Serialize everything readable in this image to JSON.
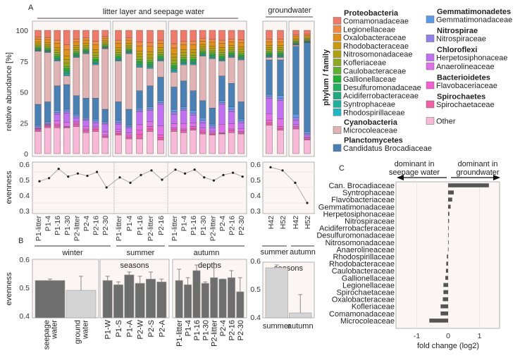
{
  "panel_labels": {
    "a": "A",
    "b": "B",
    "c": "C"
  },
  "legend": {
    "axis_label": "phylum / family",
    "phyla": [
      {
        "phylum": "Proteobacteria",
        "families": [
          {
            "name": "Comamonadaceae",
            "color": "#f07a6a"
          },
          {
            "name": "Legionellaceae",
            "color": "#f08a40"
          },
          {
            "name": "Oxalobacteraceae",
            "color": "#e0901a"
          },
          {
            "name": "Rhodobacteraceae",
            "color": "#c89a10"
          },
          {
            "name": "Nitrosomonadaceae",
            "color": "#b0a010"
          },
          {
            "name": "Kofleriaceae",
            "color": "#90a820"
          },
          {
            "name": "Caulobacteraceae",
            "color": "#60b030"
          },
          {
            "name": "Gallionellaceae",
            "color": "#20b030"
          },
          {
            "name": "Desulfuromonadaceae",
            "color": "#20b060"
          },
          {
            "name": "Acidiferrobacteraceae",
            "color": "#20a880"
          },
          {
            "name": "Syntrophaceae",
            "color": "#20b0a0"
          },
          {
            "name": "Rhodospirillaceae",
            "color": "#20b8c8"
          }
        ]
      },
      {
        "phylum": "Cyanobacteria",
        "families": [
          {
            "name": "Microcoleaceae",
            "color": "#e0b4b4"
          }
        ]
      },
      {
        "phylum": "Planctomycetes",
        "families": [
          {
            "name": "Candidatus Brocadiaceae",
            "color": "#4a80b4"
          }
        ]
      },
      {
        "phylum": "Gemmatimonadetes",
        "families": [
          {
            "name": "Gemmatimonadaceae",
            "color": "#5a9ae8"
          }
        ]
      },
      {
        "phylum": "Nitrospirae",
        "families": [
          {
            "name": "Nitrospiraceae",
            "color": "#9080e8"
          }
        ]
      },
      {
        "phylum": "Chloroflexi",
        "families": [
          {
            "name": "Herpetosiphonaceae",
            "color": "#c070f0"
          },
          {
            "name": "Anaerolineaceae",
            "color": "#e070e8"
          }
        ]
      },
      {
        "phylum": "Bacterioidetes",
        "families": [
          {
            "name": "Flavobaceriaceae",
            "color": "#f060d0"
          }
        ]
      },
      {
        "phylum": "Spirochaetes",
        "families": [
          {
            "name": "Spirochaetaceae",
            "color": "#f060a8"
          }
        ]
      }
    ],
    "other": {
      "name": "Other",
      "color": "#f8b8d8"
    }
  },
  "chart_data": [
    {
      "id": "A-abundance",
      "type": "bar",
      "stacked": true,
      "ylabel": "relative abundance [%]",
      "ylim": [
        0,
        100
      ],
      "yticks": [
        0,
        25,
        50,
        75,
        100
      ],
      "group_titles": {
        "seepage": "litter layer and seepage water",
        "groundwater": "groundwater"
      },
      "cumulative_keys": [
        "Other",
        "Spirochaetaceae+Flavobaceriaceae",
        "Chloroflexi",
        "Nitrospiraceae+Gemmatimonadaceae",
        "Candidatus Brocadiaceae",
        "Microcoleaceae",
        "Proteobacteria (to 100)"
      ],
      "groups": [
        {
          "season": "winter",
          "samples": [
            {
              "label": "P1-litter",
              "cum": [
                18,
                20,
                21,
                23,
                40,
                83
              ]
            },
            {
              "label": "P1-4",
              "cum": [
                21,
                23,
                24,
                26,
                42,
                82
              ]
            },
            {
              "label": "P1-16",
              "cum": [
                21,
                24,
                32,
                35,
                55,
                75
              ]
            },
            {
              "label": "P1-30",
              "cum": [
                21,
                22,
                33,
                36,
                56,
                63
              ]
            },
            {
              "label": "P2-litter",
              "cum": [
                22,
                25,
                29,
                32,
                47,
                78
              ]
            },
            {
              "label": "P2-4",
              "cum": [
                17,
                20,
                27,
                29,
                45,
                81
              ]
            },
            {
              "label": "P2-16",
              "cum": [
                18,
                21,
                25,
                28,
                45,
                72
              ]
            },
            {
              "label": "P2-30",
              "cum": [
                13,
                15,
                24,
                26,
                36,
                85
              ]
            }
          ]
        },
        {
          "season": "summer",
          "samples": [
            {
              "label": "P1-litter",
              "cum": [
                15,
                18,
                24,
                27,
                42,
                75
              ]
            },
            {
              "label": "P1-4",
              "cum": [
                12,
                15,
                21,
                23,
                36,
                81
              ]
            },
            {
              "label": "P1-16",
              "cum": [
                12,
                19,
                34,
                37,
                51,
                70
              ]
            },
            {
              "label": "P2-litter",
              "cum": [
                18,
                22,
                35,
                38,
                55,
                69
              ]
            },
            {
              "label": "P2-16",
              "cum": [
                11,
                15,
                40,
                43,
                62,
                75
              ]
            }
          ]
        },
        {
          "season": "autumn",
          "samples": [
            {
              "label": "P1-litter",
              "cum": [
                18,
                21,
                32,
                36,
                54,
                66
              ]
            },
            {
              "label": "P1-4",
              "cum": [
                17,
                20,
                35,
                38,
                59,
                72
              ]
            },
            {
              "label": "P1-16",
              "cum": [
                19,
                22,
                31,
                35,
                51,
                72
              ]
            },
            {
              "label": "P1-30",
              "cum": [
                16,
                19,
                25,
                29,
                43,
                79
              ]
            },
            {
              "label": "P2-litter",
              "cum": [
                15,
                17,
                21,
                24,
                37,
                77
              ]
            },
            {
              "label": "P2-4",
              "cum": [
                16,
                17,
                40,
                43,
                63,
                75
              ]
            },
            {
              "label": "P2-16",
              "cum": [
                17,
                20,
                34,
                38,
                57,
                78
              ]
            },
            {
              "label": "P2-30",
              "cum": [
                16,
                18,
                25,
                28,
                42,
                76
              ]
            }
          ]
        },
        {
          "season": "summer",
          "groundwater": true,
          "samples": [
            {
              "label": "H42",
              "cum": [
                23,
                27,
                45,
                48,
                76,
                78
              ]
            },
            {
              "label": "H52",
              "cum": [
                19,
                22,
                43,
                47,
                76,
                78
              ]
            }
          ]
        },
        {
          "season": "autumn",
          "groundwater": true,
          "samples": [
            {
              "label": "H42",
              "cum": [
                20,
                22,
                27,
                32,
                87,
                88
              ]
            },
            {
              "label": "H52",
              "cum": [
                11,
                13,
                15,
                18,
                90,
                90
              ]
            }
          ]
        }
      ]
    },
    {
      "id": "A-evenness",
      "type": "line",
      "ylabel": "evenness",
      "ylim": [
        0.3,
        0.6
      ],
      "yticks": [
        0.3,
        0.4,
        0.5,
        0.6
      ],
      "series": [
        {
          "name": "winter",
          "values": [
            0.49,
            0.51,
            0.57,
            0.52,
            0.54,
            0.525,
            0.55,
            0.45
          ]
        },
        {
          "name": "summer",
          "values": [
            0.515,
            0.48,
            0.53,
            0.56,
            0.5
          ]
        },
        {
          "name": "autumn",
          "values": [
            0.565,
            0.54,
            0.565,
            0.515,
            0.495,
            0.53,
            0.545,
            0.52
          ]
        },
        {
          "name": "groundwater",
          "values": [
            0.58,
            0.56,
            0.48,
            0.35
          ]
        }
      ]
    },
    {
      "id": "B-evenness-bars",
      "type": "bar",
      "ylabel": "evenness",
      "ylim": [
        0.4,
        0.6
      ],
      "yticks": [
        0.4,
        0.5,
        0.6
      ],
      "panels": [
        {
          "title": "",
          "bars": [
            {
              "label": [
                "seepage",
                "water"
              ],
              "value": 0.525,
              "err": 0.53,
              "light": false
            },
            {
              "label": [
                "ground",
                "water"
              ],
              "value": 0.49,
              "err": 0.54,
              "light": true
            }
          ]
        },
        {
          "title": "seasons",
          "bars": [
            {
              "label": [
                "P1-W"
              ],
              "value": 0.525,
              "err": 0.54
            },
            {
              "label": [
                "P1-S"
              ],
              "value": 0.51,
              "err": 0.52
            },
            {
              "label": [
                "P1-A"
              ],
              "value": 0.545,
              "err": 0.555
            },
            {
              "label": [
                "P2-W"
              ],
              "value": 0.515,
              "err": 0.54
            },
            {
              "label": [
                "P2-S"
              ],
              "value": 0.53,
              "err": 0.555
            },
            {
              "label": [
                "P2-A"
              ],
              "value": 0.52,
              "err": 0.53
            }
          ]
        },
        {
          "title": "depths",
          "bars": [
            {
              "label": [
                "P1-litter"
              ],
              "value": 0.525,
              "err": 0.565
            },
            {
              "label": [
                "P1-4"
              ],
              "value": 0.51,
              "err": 0.535
            },
            {
              "label": [
                "P1-16"
              ],
              "value": 0.56,
              "err": 0.58
            },
            {
              "label": [
                "P1-30"
              ],
              "value": 0.515,
              "err": 0.52
            },
            {
              "label": [
                "P2-litter"
              ],
              "value": 0.535,
              "err": 0.57
            },
            {
              "label": [
                "P2-4"
              ],
              "value": 0.53,
              "err": 0.53
            },
            {
              "label": [
                "P2-16"
              ],
              "value": 0.535,
              "err": 0.56
            },
            {
              "label": [
                "P2-30"
              ],
              "value": 0.485,
              "err": 0.535
            }
          ]
        },
        {
          "title": "seasons",
          "groundwater": true,
          "bars": [
            {
              "label": [
                "summer"
              ],
              "value": 0.57,
              "err": 0.58,
              "light": true
            },
            {
              "label": [
                "autumn"
              ],
              "value": 0.41,
              "err": 0.475,
              "light": true
            }
          ]
        }
      ]
    },
    {
      "id": "C-fold-change",
      "type": "bar",
      "orientation": "horizontal",
      "xlabel": "fold change (log2)",
      "xlim": [
        -1.6,
        1.6
      ],
      "xticks": [
        -1,
        0,
        1
      ],
      "header_left": [
        "dominant in",
        "seepage water"
      ],
      "header_right": [
        "dominant in",
        "groundwater"
      ],
      "header_left_color": "#c0392b",
      "header_right_color": "#4a80b4",
      "categories": [
        "Can. Brocadiaceae",
        "Syntrophaceae",
        "Flavobacteriaceae",
        "Gemmatimonadaceae",
        "Herpetosiphonaceae",
        "Nitrospiraceae",
        "Acidiferrobacteraceae",
        "Desulfuromonadaceae",
        "Nitrosomonadaceae",
        "Anaerolineaceae",
        "Rhodospirillaceae",
        "Rhodobacteraceae",
        "Caulobacteraceae",
        "Gallionellaceae",
        "Legionellaceae",
        "Spirochaetaceae",
        "Oxalobacteraceae",
        "Kofleriaceae",
        "Comamonadaceae",
        "Microcoleaceae"
      ],
      "values": [
        1.3,
        0.18,
        0.13,
        0.08,
        0.04,
        0.03,
        0.01,
        0.01,
        0.005,
        -0.005,
        -0.04,
        -0.06,
        -0.07,
        -0.09,
        -0.15,
        -0.15,
        -0.17,
        -0.24,
        -0.24,
        -0.6
      ]
    }
  ]
}
